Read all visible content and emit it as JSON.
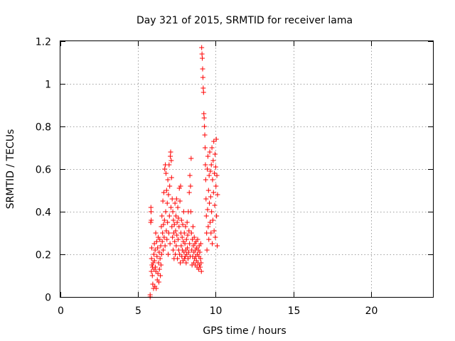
{
  "chart_data": {
    "type": "scatter",
    "title": "Day 321 of 2015, SRMTID for receiver lama",
    "xlabel": "GPS time / hours",
    "ylabel": "SRMTID / TECUs",
    "xlim": [
      0,
      24
    ],
    "ylim": [
      0,
      1.2
    ],
    "xticks": [
      0,
      5,
      10,
      15,
      20
    ],
    "xtick_labels": [
      "0",
      "5",
      "10",
      "15",
      "20"
    ],
    "yticks": [
      0,
      0.2,
      0.4,
      0.6,
      0.8,
      1,
      1.2
    ],
    "ytick_labels": [
      "0",
      "0.2",
      "0.4",
      "0.6",
      "0.8",
      "1",
      "1.2"
    ],
    "grid": true,
    "marker": "+",
    "color": "#ff0000",
    "series": [
      {
        "name": "",
        "points": [
          [
            5.78,
            0.0
          ],
          [
            5.78,
            0.01
          ],
          [
            5.82,
            0.35
          ],
          [
            5.83,
            0.42
          ],
          [
            5.84,
            0.4
          ],
          [
            5.85,
            0.36
          ],
          [
            5.86,
            0.12
          ],
          [
            5.87,
            0.18
          ],
          [
            5.88,
            0.23
          ],
          [
            5.9,
            0.15
          ],
          [
            5.92,
            0.1
          ],
          [
            5.93,
            0.14
          ],
          [
            5.95,
            0.06
          ],
          [
            5.97,
            0.16
          ],
          [
            6.0,
            0.04
          ],
          [
            6.02,
            0.2
          ],
          [
            6.03,
            0.13
          ],
          [
            6.05,
            0.25
          ],
          [
            6.06,
            0.17
          ],
          [
            6.08,
            0.05
          ],
          [
            6.1,
            0.22
          ],
          [
            6.12,
            0.14
          ],
          [
            6.14,
            0.3
          ],
          [
            6.15,
            0.12
          ],
          [
            6.17,
            0.04
          ],
          [
            6.2,
            0.26
          ],
          [
            6.22,
            0.19
          ],
          [
            6.24,
            0.08
          ],
          [
            6.26,
            0.23
          ],
          [
            6.28,
            0.11
          ],
          [
            6.3,
            0.28
          ],
          [
            6.32,
            0.16
          ],
          [
            6.34,
            0.07
          ],
          [
            6.36,
            0.21
          ],
          [
            6.38,
            0.13
          ],
          [
            6.4,
            0.27
          ],
          [
            6.42,
            0.18
          ],
          [
            6.44,
            0.1
          ],
          [
            6.46,
            0.24
          ],
          [
            6.48,
            0.15
          ],
          [
            6.5,
            0.33
          ],
          [
            6.52,
            0.2
          ],
          [
            6.54,
            0.38
          ],
          [
            6.56,
            0.26
          ],
          [
            6.58,
            0.3
          ],
          [
            6.6,
            0.45
          ],
          [
            6.62,
            0.22
          ],
          [
            6.64,
            0.34
          ],
          [
            6.66,
            0.49
          ],
          [
            6.68,
            0.28
          ],
          [
            6.7,
            0.36
          ],
          [
            6.72,
            0.6
          ],
          [
            6.74,
            0.24
          ],
          [
            6.76,
            0.62
          ],
          [
            6.78,
            0.4
          ],
          [
            6.8,
            0.58
          ],
          [
            6.82,
            0.31
          ],
          [
            6.84,
            0.5
          ],
          [
            6.86,
            0.27
          ],
          [
            6.88,
            0.44
          ],
          [
            6.9,
            0.35
          ],
          [
            6.92,
            0.55
          ],
          [
            6.94,
            0.2
          ],
          [
            6.96,
            0.48
          ],
          [
            6.98,
            0.3
          ],
          [
            7.0,
            0.62
          ],
          [
            7.02,
            0.38
          ],
          [
            7.04,
            0.52
          ],
          [
            7.06,
            0.25
          ],
          [
            7.08,
            0.66
          ],
          [
            7.1,
            0.68
          ],
          [
            7.12,
            0.42
          ],
          [
            7.14,
            0.64
          ],
          [
            7.16,
            0.56
          ],
          [
            7.18,
            0.33
          ],
          [
            7.2,
            0.46
          ],
          [
            7.22,
            0.28
          ],
          [
            7.24,
            0.4
          ],
          [
            7.26,
            0.22
          ],
          [
            7.28,
            0.36
          ],
          [
            7.3,
            0.3
          ],
          [
            7.32,
            0.18
          ],
          [
            7.34,
            0.34
          ],
          [
            7.36,
            0.26
          ],
          [
            7.38,
            0.44
          ],
          [
            7.4,
            0.2
          ],
          [
            7.42,
            0.31
          ],
          [
            7.44,
            0.38
          ],
          [
            7.46,
            0.24
          ],
          [
            7.48,
            0.46
          ],
          [
            7.5,
            0.29
          ],
          [
            7.52,
            0.35
          ],
          [
            7.54,
            0.18
          ],
          [
            7.56,
            0.42
          ],
          [
            7.58,
            0.27
          ],
          [
            7.6,
            0.37
          ],
          [
            7.62,
            0.22
          ],
          [
            7.64,
            0.33
          ],
          [
            7.66,
            0.51
          ],
          [
            7.68,
            0.2
          ],
          [
            7.7,
            0.45
          ],
          [
            7.72,
            0.16
          ],
          [
            7.74,
            0.52
          ],
          [
            7.76,
            0.3
          ],
          [
            7.78,
            0.24
          ],
          [
            7.8,
            0.36
          ],
          [
            7.82,
            0.19
          ],
          [
            7.84,
            0.28
          ],
          [
            7.86,
            0.22
          ],
          [
            7.88,
            0.34
          ],
          [
            7.9,
            0.17
          ],
          [
            7.92,
            0.26
          ],
          [
            7.94,
            0.4
          ],
          [
            7.96,
            0.21
          ],
          [
            7.98,
            0.3
          ],
          [
            8.0,
            0.18
          ],
          [
            8.02,
            0.25
          ],
          [
            8.04,
            0.19
          ],
          [
            8.06,
            0.33
          ],
          [
            8.08,
            0.22
          ],
          [
            8.1,
            0.16
          ],
          [
            8.12,
            0.27
          ],
          [
            8.14,
            0.2
          ],
          [
            8.16,
            0.35
          ],
          [
            8.18,
            0.23
          ],
          [
            8.2,
            0.29
          ],
          [
            8.22,
            0.18
          ],
          [
            8.24,
            0.4
          ],
          [
            8.26,
            0.21
          ],
          [
            8.28,
            0.31
          ],
          [
            8.3,
            0.49
          ],
          [
            8.32,
            0.25
          ],
          [
            8.34,
            0.57
          ],
          [
            8.36,
            0.19
          ],
          [
            8.38,
            0.52
          ],
          [
            8.4,
            0.4
          ],
          [
            8.42,
            0.65
          ],
          [
            8.44,
            0.3
          ],
          [
            8.46,
            0.22
          ],
          [
            8.48,
            0.15
          ],
          [
            8.5,
            0.27
          ],
          [
            8.52,
            0.19
          ],
          [
            8.54,
            0.33
          ],
          [
            8.56,
            0.24
          ],
          [
            8.58,
            0.16
          ],
          [
            8.6,
            0.21
          ],
          [
            8.62,
            0.28
          ],
          [
            8.64,
            0.18
          ],
          [
            8.66,
            0.25
          ],
          [
            8.68,
            0.15
          ],
          [
            8.7,
            0.22
          ],
          [
            8.72,
            0.19
          ],
          [
            8.74,
            0.26
          ],
          [
            8.76,
            0.17
          ],
          [
            8.78,
            0.23
          ],
          [
            8.8,
            0.14
          ],
          [
            8.82,
            0.2
          ],
          [
            8.84,
            0.27
          ],
          [
            8.86,
            0.16
          ],
          [
            8.88,
            0.22
          ],
          [
            8.9,
            0.13
          ],
          [
            8.92,
            0.19
          ],
          [
            8.94,
            0.24
          ],
          [
            8.96,
            0.15
          ],
          [
            8.98,
            0.21
          ],
          [
            9.0,
            0.14
          ],
          [
            9.02,
            0.18
          ],
          [
            9.04,
            0.25
          ],
          [
            9.06,
            0.16
          ],
          [
            9.08,
            0.12
          ],
          [
            9.1,
            1.17
          ],
          [
            9.12,
            1.14
          ],
          [
            9.14,
            1.12
          ],
          [
            9.16,
            1.07
          ],
          [
            9.18,
            1.03
          ],
          [
            9.2,
            0.98
          ],
          [
            9.22,
            0.96
          ],
          [
            9.24,
            0.86
          ],
          [
            9.26,
            0.84
          ],
          [
            9.28,
            0.8
          ],
          [
            9.3,
            0.76
          ],
          [
            9.32,
            0.7
          ],
          [
            9.34,
            0.62
          ],
          [
            9.36,
            0.55
          ],
          [
            9.38,
            0.46
          ],
          [
            9.4,
            0.38
          ],
          [
            9.42,
            0.3
          ],
          [
            9.44,
            0.22
          ],
          [
            9.46,
            0.6
          ],
          [
            9.48,
            0.41
          ],
          [
            9.5,
            0.66
          ],
          [
            9.52,
            0.33
          ],
          [
            9.54,
            0.5
          ],
          [
            9.56,
            0.27
          ],
          [
            9.58,
            0.57
          ],
          [
            9.6,
            0.44
          ],
          [
            9.62,
            0.68
          ],
          [
            9.64,
            0.35
          ],
          [
            9.66,
            0.59
          ],
          [
            9.68,
            0.47
          ],
          [
            9.7,
            0.3
          ],
          [
            9.72,
            0.62
          ],
          [
            9.74,
            0.4
          ],
          [
            9.76,
            0.7
          ],
          [
            9.78,
            0.25
          ],
          [
            9.8,
            0.55
          ],
          [
            9.82,
            0.36
          ],
          [
            9.84,
            0.64
          ],
          [
            9.86,
            0.49
          ],
          [
            9.88,
            0.73
          ],
          [
            9.9,
            0.31
          ],
          [
            9.92,
            0.58
          ],
          [
            9.94,
            0.43
          ],
          [
            9.96,
            0.67
          ],
          [
            9.98,
            0.28
          ],
          [
            10.0,
            0.61
          ],
          [
            10.02,
            0.52
          ],
          [
            10.04,
            0.74
          ],
          [
            10.06,
            0.38
          ],
          [
            10.08,
            0.57
          ],
          [
            10.1,
            0.24
          ],
          [
            10.12,
            0.48
          ]
        ]
      }
    ]
  }
}
